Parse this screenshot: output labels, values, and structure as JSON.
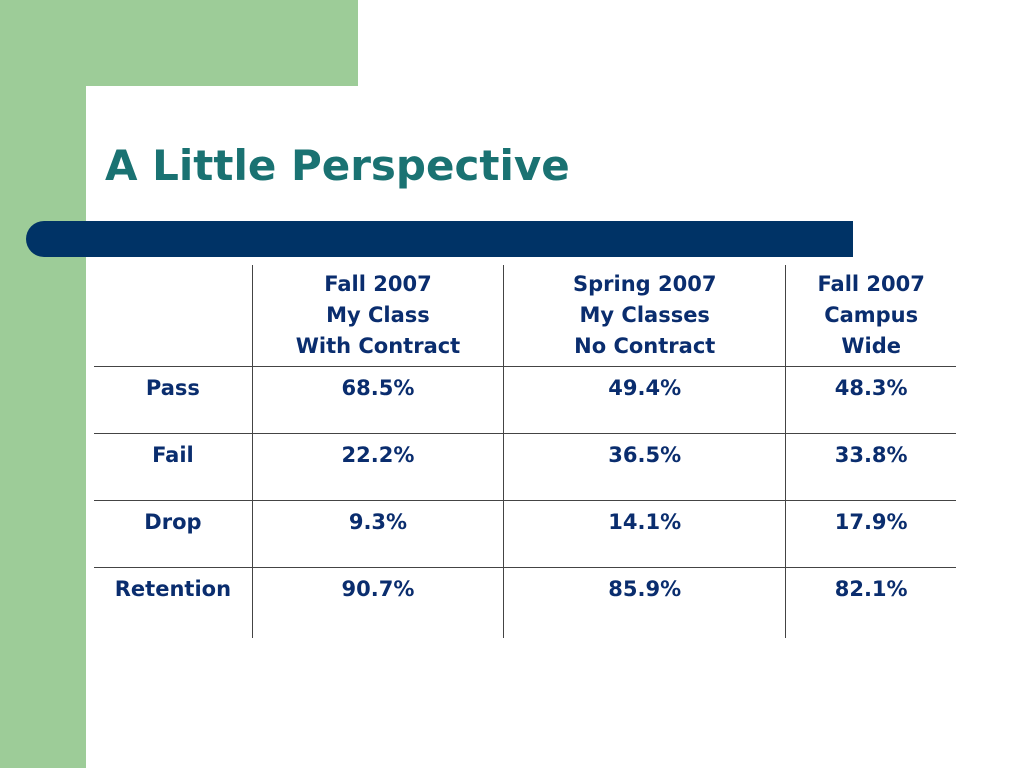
{
  "slide": {
    "title": "A Little Perspective"
  },
  "table": {
    "headers": [
      [
        "Fall 2007",
        "My Class",
        "With Contract"
      ],
      [
        "Spring 2007",
        "My Classes",
        "No Contract"
      ],
      [
        "Fall 2007",
        "Campus",
        "Wide"
      ]
    ],
    "rows": [
      {
        "label": "Pass",
        "values": [
          "68.5%",
          "49.4%",
          "48.3%"
        ]
      },
      {
        "label": "Fail",
        "values": [
          "22.2%",
          "36.5%",
          "33.8%"
        ]
      },
      {
        "label": "Drop",
        "values": [
          "9.3%",
          "14.1%",
          "17.9%"
        ]
      },
      {
        "label": "Retention",
        "values": [
          "90.7%",
          "85.9%",
          "82.1%"
        ]
      }
    ]
  },
  "colors": {
    "accent_green": "#9dcc98",
    "title_teal": "#1a7272",
    "bar_navy": "#003366",
    "text_navy": "#0a2d6e"
  }
}
